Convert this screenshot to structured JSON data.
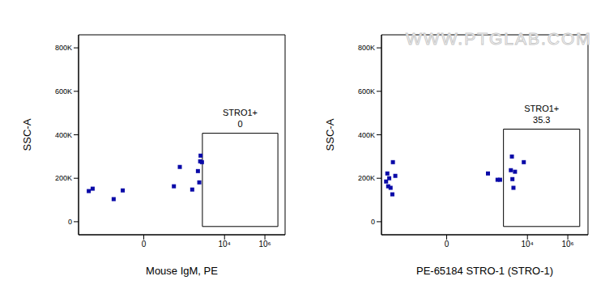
{
  "chart_data": [
    {
      "type": "scatter",
      "x_label": "Mouse IgM, PE",
      "y_label": "SSC-A",
      "log": "x",
      "xlim": [
        -1700,
        10000000
      ],
      "ylim": [
        -60000,
        860000
      ],
      "xticks": [
        0,
        {
          "value": 10000,
          "label": "10⁴"
        },
        {
          "value": 1000000,
          "label": "10⁶"
        }
      ],
      "yticks": [
        0,
        {
          "value": 200000,
          "label": "200K"
        },
        {
          "value": 400000,
          "label": "400K"
        },
        {
          "value": 600000,
          "label": "600K"
        },
        {
          "value": 800000,
          "label": "800K"
        }
      ],
      "x": [
        -530,
        -340,
        -30,
        30,
        60,
        -10,
        250,
        480,
        560,
        620,
        650,
        760
      ],
      "values": [
        141000,
        152000,
        104000,
        163000,
        252000,
        144000,
        148000,
        233000,
        181000,
        278000,
        304000,
        274000
      ],
      "color": "#0a0aa8",
      "marker": "square",
      "gate": {
        "label": "STRO1+",
        "value": 0,
        "x": [
          800,
          4400000
        ],
        "y": [
          -22000,
          407000
        ]
      }
    },
    {
      "type": "scatter",
      "x_label": "PE-65184 STRO-1 (STRO-1)",
      "y_label": "SSC-A",
      "log": "x",
      "xlim": [
        -1700,
        10000000
      ],
      "ylim": [
        -60000,
        860000
      ],
      "xticks": [
        0,
        {
          "value": 10000,
          "label": "10⁴"
        },
        {
          "value": 1000000,
          "label": "10⁶"
        }
      ],
      "yticks": [
        0,
        {
          "value": 200000,
          "label": "200K"
        },
        {
          "value": 400000,
          "label": "400K"
        },
        {
          "value": 600000,
          "label": "600K"
        },
        {
          "value": 800000,
          "label": "800K"
        }
      ],
      "x": [
        -1000,
        -870,
        -790,
        -700,
        -600,
        -490,
        -460,
        -350,
        110,
        330,
        440,
        1510,
        1700,
        1800,
        2030,
        2420,
        6600
      ],
      "values": [
        185000,
        222000,
        163000,
        200000,
        156000,
        126000,
        274000,
        211000,
        222000,
        193000,
        193000,
        237000,
        300000,
        196000,
        156000,
        230000,
        274000
      ],
      "color": "#0a0aa8",
      "marker": "square",
      "gate": {
        "label": "STRO1+",
        "value": 35.3,
        "x": [
          650,
          3900000
        ],
        "y": [
          -22000,
          426000
        ]
      },
      "watermark": "WWW.PTGLAB.COM"
    }
  ]
}
